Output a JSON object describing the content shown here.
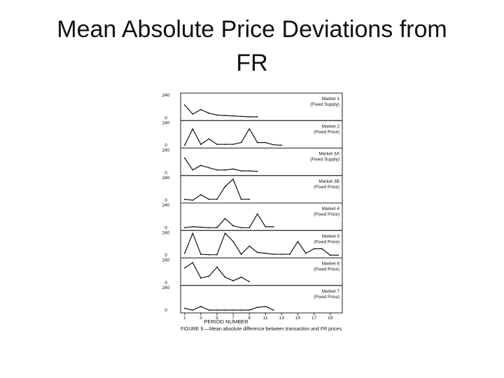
{
  "slide": {
    "title_line1": "Mean Absolute Price Deviations from",
    "title_line2": "FR"
  },
  "chart_data": {
    "type": "line",
    "ylim": [
      0,
      240
    ],
    "y_tick_labels": [
      "240",
      "0"
    ],
    "x_tick_labels": [
      "1",
      "3",
      "5",
      "7",
      "9",
      "11",
      "13",
      "15",
      "17",
      "19"
    ],
    "xlabel": "PERIOD NUMBER",
    "caption": "FIGURE 9.—Mean absolute difference between transaction and FR prices.",
    "xlim": [
      0.5,
      20.5
    ],
    "panels": [
      {
        "name": "Market 1",
        "treatment": "(Fixed Supply)",
        "x": [
          1,
          2,
          3,
          4,
          5,
          6,
          7,
          8,
          9,
          10
        ],
        "y": [
          140,
          40,
          90,
          50,
          30,
          25,
          20,
          15,
          10,
          10
        ]
      },
      {
        "name": "Market 2",
        "treatment": "(Fixed Price)",
        "x": [
          1,
          2,
          3,
          4,
          5,
          6,
          7,
          8,
          9,
          10,
          11,
          12,
          13
        ],
        "y": [
          0,
          180,
          10,
          70,
          10,
          10,
          10,
          30,
          180,
          30,
          30,
          5,
          0
        ]
      },
      {
        "name": "Market 3A",
        "treatment": "(Fixed Supply)",
        "x": [
          1,
          2,
          3,
          4,
          5,
          6,
          7,
          8,
          9,
          10
        ],
        "y": [
          160,
          30,
          80,
          55,
          30,
          30,
          40,
          20,
          20,
          15
        ]
      },
      {
        "name": "Market 3B",
        "treatment": "(Fixed Price)",
        "x": [
          1,
          2,
          3,
          4,
          5,
          6,
          7,
          8,
          9
        ],
        "y": [
          10,
          0,
          60,
          10,
          10,
          150,
          230,
          10,
          10
        ]
      },
      {
        "name": "Market 4",
        "treatment": "(Fixed Price)",
        "x": [
          1,
          2,
          3,
          4,
          5,
          6,
          7,
          8,
          9,
          10,
          11,
          12
        ],
        "y": [
          0,
          10,
          5,
          0,
          0,
          100,
          20,
          0,
          0,
          150,
          10,
          10
        ]
      },
      {
        "name": "Market 5",
        "treatment": "(Fixed Price)",
        "x": [
          1,
          2,
          3,
          4,
          5,
          6,
          7,
          8,
          9,
          10,
          11,
          12,
          13,
          14,
          15,
          16,
          17,
          18,
          19,
          20
        ],
        "y": [
          20,
          240,
          10,
          5,
          5,
          240,
          150,
          10,
          100,
          30,
          20,
          10,
          10,
          10,
          150,
          20,
          70,
          70,
          0,
          0
        ]
      },
      {
        "name": "Market 6",
        "treatment": "(Fixed Price)",
        "x": [
          1,
          2,
          3,
          4,
          5,
          6,
          7,
          8,
          9
        ],
        "y": [
          160,
          220,
          50,
          70,
          170,
          60,
          20,
          60,
          10
        ]
      },
      {
        "name": "Market 7",
        "treatment": "(Fixed Price)",
        "x": [
          1,
          2,
          3,
          4,
          5,
          6,
          7,
          8,
          9,
          10,
          11,
          12
        ],
        "y": [
          20,
          0,
          40,
          0,
          0,
          0,
          0,
          0,
          0,
          30,
          40,
          0
        ]
      }
    ]
  }
}
